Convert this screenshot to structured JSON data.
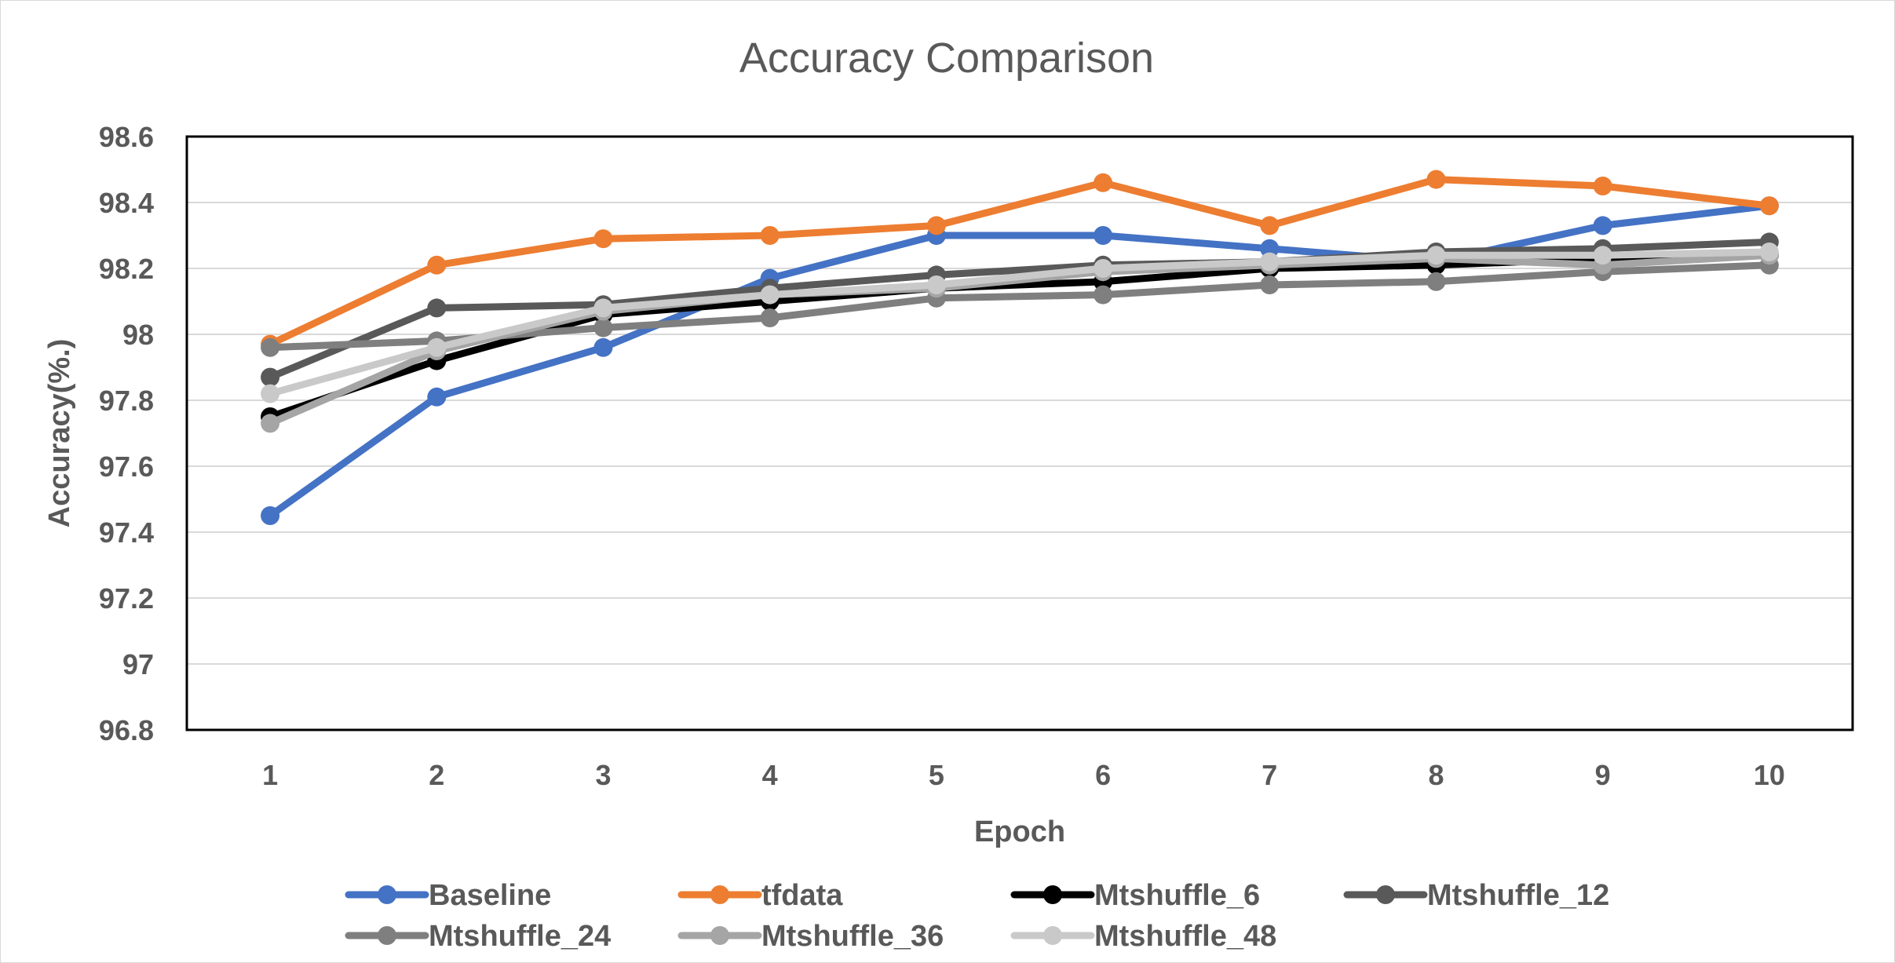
{
  "chart_data": {
    "type": "line",
    "title": "Accuracy Comparison",
    "xlabel": "Epoch",
    "ylabel": "Accuracy(%.)",
    "categories": [
      "1",
      "2",
      "3",
      "4",
      "5",
      "6",
      "7",
      "8",
      "9",
      "10"
    ],
    "ylim": [
      96.8,
      98.6
    ],
    "yticks": [
      "98.6",
      "98.4",
      "98.2",
      "98",
      "97.8",
      "97.6",
      "97.4",
      "97.2",
      "97",
      "96.8"
    ],
    "grid": "horizontal",
    "legend_position": "bottom",
    "series": [
      {
        "name": "Baseline",
        "color": "#4472c4",
        "values": [
          97.45,
          97.81,
          97.96,
          98.17,
          98.3,
          98.3,
          98.26,
          98.22,
          98.33,
          98.39
        ]
      },
      {
        "name": "tfdata",
        "color": "#ed7d31",
        "values": [
          97.97,
          98.21,
          98.29,
          98.3,
          98.33,
          98.46,
          98.33,
          98.47,
          98.45,
          98.39
        ]
      },
      {
        "name": "Mtshuffle_6",
        "color": "#000000",
        "values": [
          97.75,
          97.92,
          98.06,
          98.1,
          98.14,
          98.16,
          98.2,
          98.21,
          98.23,
          98.24
        ]
      },
      {
        "name": "Mtshuffle_12",
        "color": "#595959",
        "values": [
          97.87,
          98.08,
          98.09,
          98.14,
          98.18,
          98.21,
          98.22,
          98.25,
          98.26,
          98.28
        ]
      },
      {
        "name": "Mtshuffle_24",
        "color": "#7f7f7f",
        "values": [
          97.96,
          97.98,
          98.02,
          98.05,
          98.11,
          98.12,
          98.15,
          98.16,
          98.19,
          98.21
        ]
      },
      {
        "name": "Mtshuffle_36",
        "color": "#a5a5a5",
        "values": [
          97.73,
          97.95,
          98.07,
          98.12,
          98.14,
          98.19,
          98.21,
          98.23,
          98.21,
          98.24
        ]
      },
      {
        "name": "Mtshuffle_48",
        "color": "#c9c9c9",
        "values": [
          97.82,
          97.96,
          98.08,
          98.12,
          98.15,
          98.2,
          98.22,
          98.24,
          98.24,
          98.25
        ]
      }
    ]
  }
}
